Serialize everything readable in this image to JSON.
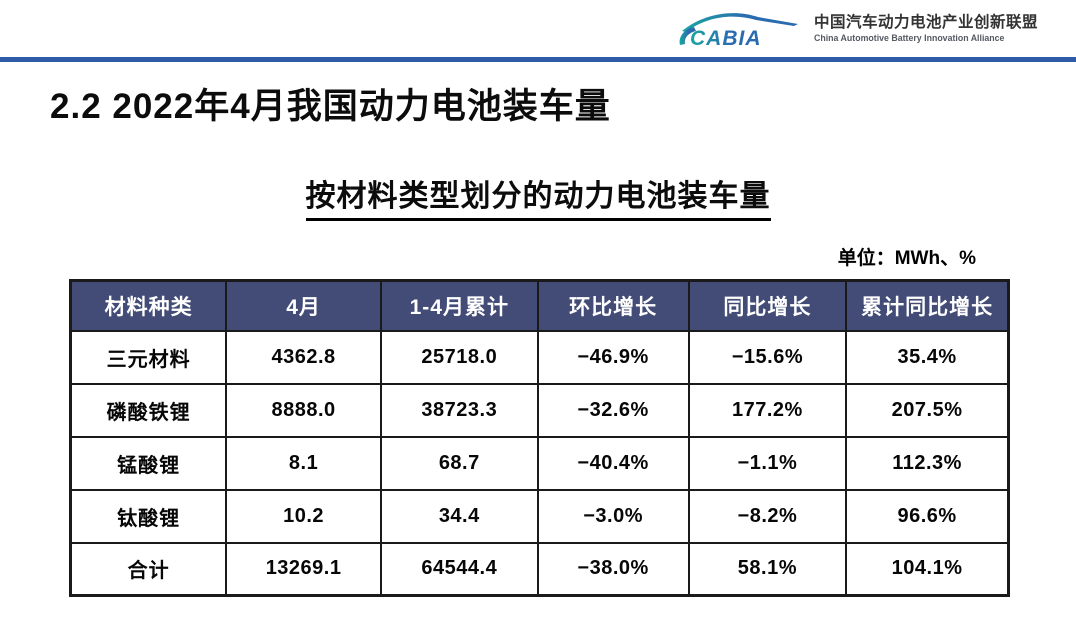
{
  "logo": {
    "mark_text": "CABIA",
    "org_cn": "中国汽车动力电池产业创新联盟",
    "org_en": "China Automotive Battery Innovation Alliance"
  },
  "page": {
    "title": "2.2 2022年4月我国动力电池装车量",
    "subtitle": "按材料类型划分的动力电池装车量",
    "unit_note": "单位：MWh、%"
  },
  "table": {
    "headers": [
      "材料种类",
      "4月",
      "1-4月累计",
      "环比增长",
      "同比增长",
      "累计同比增长"
    ],
    "rows": [
      [
        "三元材料",
        "4362.8",
        "25718.0",
        "−46.9%",
        "−15.6%",
        "35.4%"
      ],
      [
        "磷酸铁锂",
        "8888.0",
        "38723.3",
        "−32.6%",
        "177.2%",
        "207.5%"
      ],
      [
        "锰酸锂",
        "8.1",
        "68.7",
        "−40.4%",
        "−1.1%",
        "112.3%"
      ],
      [
        "钛酸锂",
        "10.2",
        "34.4",
        "−3.0%",
        "−8.2%",
        "96.6%"
      ],
      [
        "合计",
        "13269.1",
        "64544.4",
        "−38.0%",
        "58.1%",
        "104.1%"
      ]
    ]
  },
  "colors": {
    "table_header_bg": "#424c77",
    "rule_blue": "#2e5ca8",
    "logo_blue": "#2b6cb0",
    "logo_teal": "#1aa7a0",
    "border_black": "#1a1a1a"
  }
}
